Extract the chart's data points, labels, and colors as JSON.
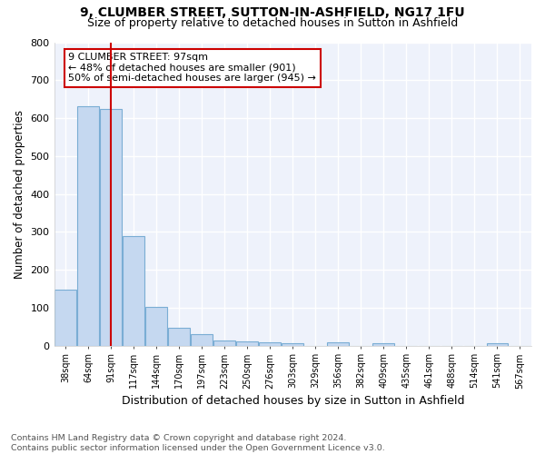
{
  "title1": "9, CLUMBER STREET, SUTTON-IN-ASHFIELD, NG17 1FU",
  "title2": "Size of property relative to detached houses in Sutton in Ashfield",
  "xlabel": "Distribution of detached houses by size in Sutton in Ashfield",
  "ylabel": "Number of detached properties",
  "footnote1": "Contains HM Land Registry data © Crown copyright and database right 2024.",
  "footnote2": "Contains public sector information licensed under the Open Government Licence v3.0.",
  "bin_labels": [
    "38sqm",
    "64sqm",
    "91sqm",
    "117sqm",
    "144sqm",
    "170sqm",
    "197sqm",
    "223sqm",
    "250sqm",
    "276sqm",
    "303sqm",
    "329sqm",
    "356sqm",
    "382sqm",
    "409sqm",
    "435sqm",
    "461sqm",
    "488sqm",
    "514sqm",
    "541sqm",
    "567sqm"
  ],
  "bar_values": [
    148,
    630,
    623,
    289,
    102,
    46,
    29,
    14,
    10,
    8,
    7,
    0,
    8,
    0,
    7,
    0,
    0,
    0,
    0,
    7,
    0
  ],
  "bar_color": "#c5d8f0",
  "bar_edge_color": "#7aadd4",
  "vline_x": 2.0,
  "vline_color": "#cc0000",
  "annotation_text": "9 CLUMBER STREET: 97sqm\n← 48% of detached houses are smaller (901)\n50% of semi-detached houses are larger (945) →",
  "annotation_box_color": "#ffffff",
  "annotation_box_edge": "#cc0000",
  "ylim": [
    0,
    800
  ],
  "yticks": [
    0,
    100,
    200,
    300,
    400,
    500,
    600,
    700,
    800
  ],
  "background_color": "#ffffff",
  "plot_bg_color": "#eef2fb",
  "grid_color": "#ffffff",
  "title1_fontsize": 10,
  "title2_fontsize": 9,
  "xlabel_fontsize": 9,
  "ylabel_fontsize": 8.5,
  "footnote_fontsize": 6.8
}
